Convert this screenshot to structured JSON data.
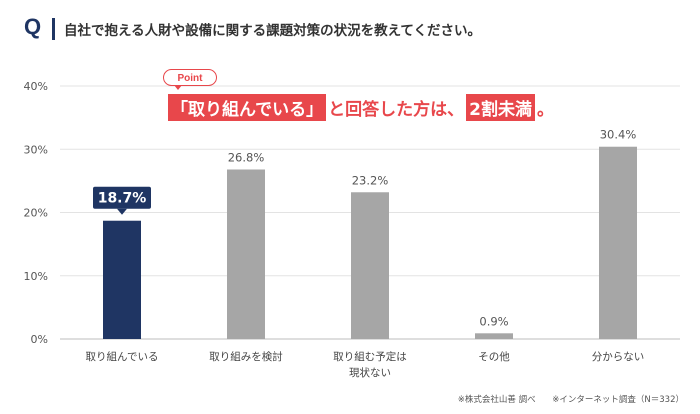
{
  "header": {
    "q_mark": "Q",
    "question": "自社で抱える人財や設備に関する課題対策の状況を教えてください。"
  },
  "callout": {
    "pill": "Point",
    "parts": [
      "「取り組んでいる」",
      "と回答した方は、",
      "2割未満",
      "。"
    ]
  },
  "source": {
    "left": "※株式会社山善 調べ",
    "right": "※インターネット調査（N＝332）"
  },
  "colors": {
    "highlight": "#1f3563",
    "bar": "#a6a6a6",
    "accent": "#e8474b"
  },
  "chart_data": {
    "type": "bar",
    "categories": [
      [
        "取り組んでいる"
      ],
      [
        "取り組みを検討"
      ],
      [
        "取り組む予定は",
        "現状ない"
      ],
      [
        "その他"
      ],
      [
        "分からない"
      ]
    ],
    "values": [
      18.7,
      26.8,
      23.2,
      0.9,
      30.4
    ],
    "value_labels": [
      "18.7%",
      "26.8%",
      "23.2%",
      "0.9%",
      "30.4%"
    ],
    "highlight_index": 0,
    "ylim": [
      0,
      40
    ],
    "yticks": [
      "0%",
      "10%",
      "20%",
      "30%",
      "40%"
    ],
    "ytick_values": [
      0,
      10,
      20,
      30,
      40
    ],
    "grid": true
  }
}
